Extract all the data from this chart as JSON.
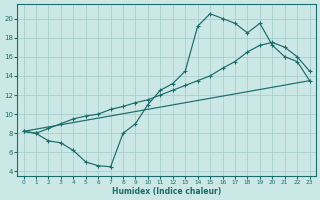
{
  "xlabel": "Humidex (Indice chaleur)",
  "bg_color": "#cce8e6",
  "grid_color": "#aacfcc",
  "line_color": "#1a6b6b",
  "line_upper": {
    "x": [
      0,
      1,
      2,
      3,
      4,
      5,
      6,
      7,
      8,
      9,
      10,
      11,
      12,
      13,
      14,
      15,
      16,
      17,
      18,
      19,
      20,
      21,
      22,
      23
    ],
    "y": [
      8.2,
      8.0,
      7.2,
      7.0,
      6.2,
      5.0,
      4.6,
      4.5,
      8.0,
      9.0,
      11.0,
      12.5,
      13.2,
      14.5,
      19.2,
      20.5,
      20.0,
      19.5,
      18.5,
      19.5,
      17.2,
      16.0,
      15.5,
      13.5
    ]
  },
  "line_mid": {
    "x": [
      0,
      1,
      2,
      3,
      4,
      5,
      6,
      7,
      8,
      9,
      10,
      11,
      12,
      13,
      14,
      15,
      16,
      17,
      18,
      19,
      20,
      21,
      22,
      23
    ],
    "y": [
      8.2,
      8.0,
      8.5,
      9.0,
      9.5,
      9.8,
      10.0,
      10.5,
      10.8,
      11.2,
      11.5,
      12.0,
      12.5,
      13.0,
      13.5,
      14.0,
      14.8,
      15.5,
      16.5,
      17.2,
      17.5,
      17.0,
      16.0,
      14.5
    ]
  },
  "line_diag": {
    "x": [
      0,
      23
    ],
    "y": [
      8.2,
      13.5
    ]
  },
  "xlim": [
    -0.5,
    23.5
  ],
  "ylim": [
    3.5,
    21.5
  ],
  "xticks": [
    0,
    1,
    2,
    3,
    4,
    5,
    6,
    7,
    8,
    9,
    10,
    11,
    12,
    13,
    14,
    15,
    16,
    17,
    18,
    19,
    20,
    21,
    22,
    23
  ],
  "yticks": [
    4,
    6,
    8,
    10,
    12,
    14,
    16,
    18,
    20
  ]
}
